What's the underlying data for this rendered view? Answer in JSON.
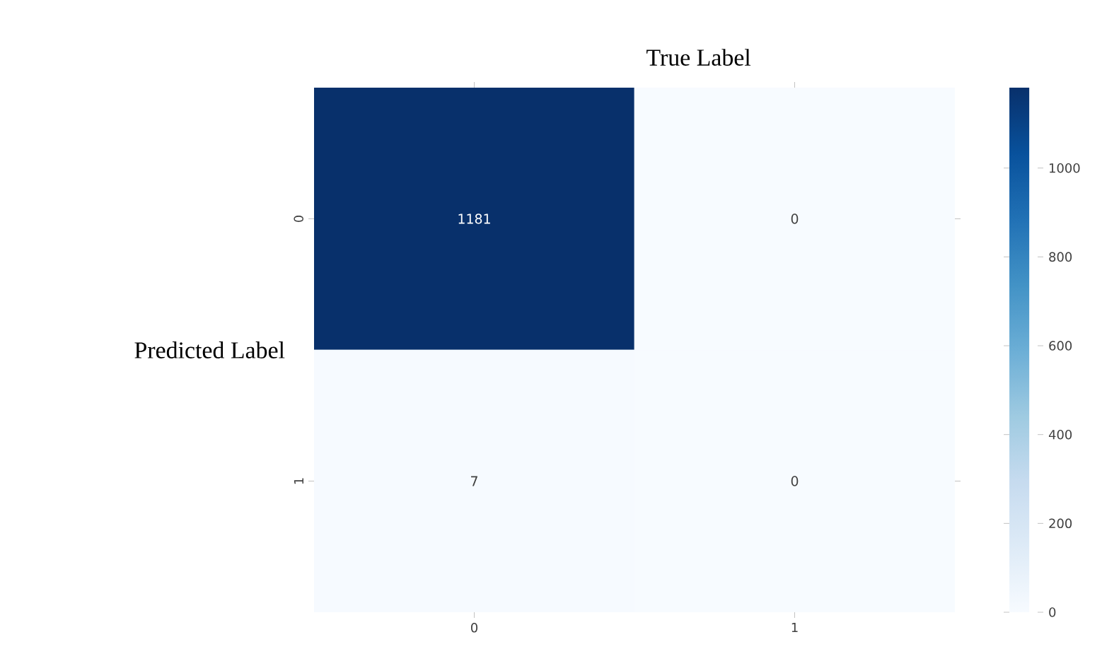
{
  "chart_data": {
    "type": "heatmap",
    "xlabel": "True Label",
    "ylabel": "Predicted Label",
    "categories": [
      "0",
      "1"
    ],
    "y_categories": [
      "0",
      "1"
    ],
    "cells": [
      [
        1181,
        0
      ],
      [
        7,
        0
      ]
    ],
    "data_labels": true,
    "clim": [
      0,
      1181
    ],
    "cticks": [
      0,
      200,
      400,
      600,
      800,
      1000
    ]
  }
}
